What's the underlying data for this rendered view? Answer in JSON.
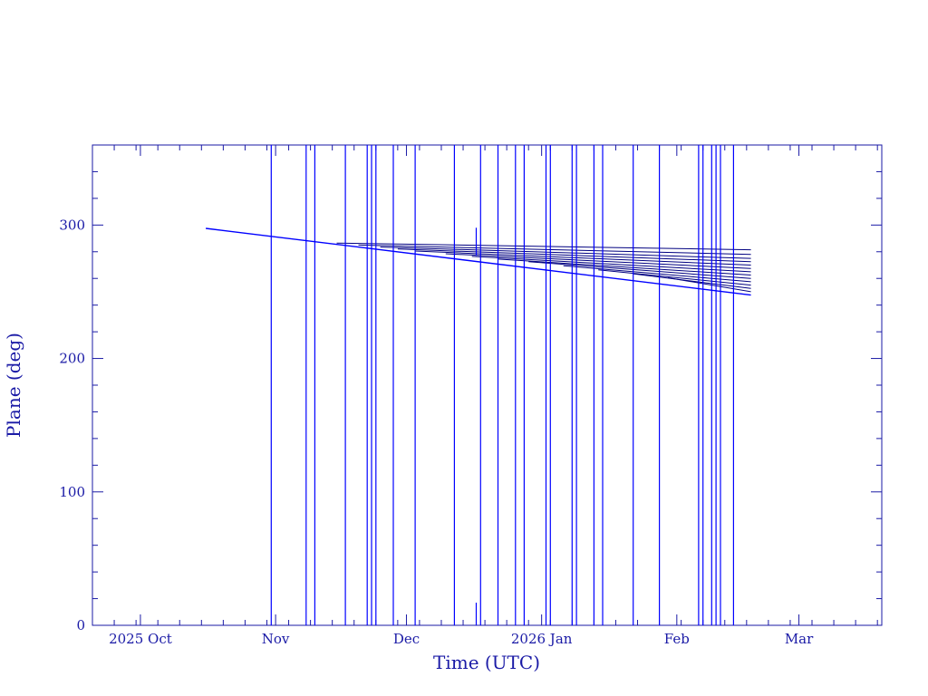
{
  "chart_data": {
    "type": "line",
    "xlabel": "Time (UTC)",
    "ylabel": "Plane (deg)",
    "title": "",
    "x_scale": "date",
    "xlim": [
      "2025-09-20",
      "2026-03-20"
    ],
    "ylim": [
      0,
      360
    ],
    "x_ticks": [
      {
        "date": "2025-10-01",
        "label": "2025 Oct"
      },
      {
        "date": "2025-11-01",
        "label": "Nov"
      },
      {
        "date": "2025-12-01",
        "label": "Dec"
      },
      {
        "date": "2026-01-01",
        "label": "2026 Jan"
      },
      {
        "date": "2026-02-01",
        "label": "Feb"
      },
      {
        "date": "2026-03-01",
        "label": "Mar"
      }
    ],
    "y_ticks": [
      0,
      100,
      200,
      300
    ],
    "colors": {
      "axis": "#1a1aa6",
      "main": "#0000ff",
      "secondary": "#000080"
    },
    "series": [
      {
        "x": [
          "2025-10-16",
          "2026-02-18"
        ],
        "y": [
          297.5,
          247.5
        ]
      },
      {
        "x": [
          "2025-10-31",
          "2025-10-31"
        ],
        "y": [
          0,
          360
        ]
      },
      {
        "x": [
          "2025-11-08",
          "2025-11-08"
        ],
        "y": [
          0,
          360
        ]
      },
      {
        "x": [
          "2025-11-10",
          "2025-11-10"
        ],
        "y": [
          0,
          360
        ]
      },
      {
        "x": [
          "2025-11-17",
          "2025-11-17"
        ],
        "y": [
          0,
          360
        ]
      },
      {
        "x": [
          "2025-11-22",
          "2025-11-22"
        ],
        "y": [
          0,
          360
        ]
      },
      {
        "x": [
          "2025-11-23",
          "2025-11-23"
        ],
        "y": [
          0,
          360
        ]
      },
      {
        "x": [
          "2025-11-24",
          "2025-11-24"
        ],
        "y": [
          0,
          360
        ]
      },
      {
        "x": [
          "2025-11-28",
          "2025-11-28"
        ],
        "y": [
          0,
          360
        ]
      },
      {
        "x": [
          "2025-12-03",
          "2025-12-03"
        ],
        "y": [
          0,
          360
        ]
      },
      {
        "x": [
          "2025-12-12",
          "2025-12-12"
        ],
        "y": [
          0,
          360
        ]
      },
      {
        "x": [
          "2025-12-18",
          "2025-12-18"
        ],
        "y": [
          0,
          360
        ]
      },
      {
        "x": [
          "2025-12-22",
          "2025-12-22"
        ],
        "y": [
          0,
          360
        ]
      },
      {
        "x": [
          "2025-12-26",
          "2025-12-26"
        ],
        "y": [
          0,
          360
        ]
      },
      {
        "x": [
          "2025-12-28",
          "2025-12-28"
        ],
        "y": [
          0,
          360
        ]
      },
      {
        "x": [
          "2026-01-02",
          "2026-01-02"
        ],
        "y": [
          0,
          360
        ]
      },
      {
        "x": [
          "2026-01-03",
          "2026-01-03"
        ],
        "y": [
          0,
          360
        ]
      },
      {
        "x": [
          "2026-01-08",
          "2026-01-08"
        ],
        "y": [
          0,
          360
        ]
      },
      {
        "x": [
          "2026-01-09",
          "2026-01-09"
        ],
        "y": [
          0,
          360
        ]
      },
      {
        "x": [
          "2026-01-13",
          "2026-01-13"
        ],
        "y": [
          0,
          360
        ]
      },
      {
        "x": [
          "2026-01-15",
          "2026-01-15"
        ],
        "y": [
          0,
          360
        ]
      },
      {
        "x": [
          "2026-01-22",
          "2026-01-22"
        ],
        "y": [
          0,
          360
        ]
      },
      {
        "x": [
          "2026-01-28",
          "2026-01-28"
        ],
        "y": [
          0,
          360
        ]
      },
      {
        "x": [
          "2026-02-06",
          "2026-02-06"
        ],
        "y": [
          0,
          360
        ]
      },
      {
        "x": [
          "2026-02-07",
          "2026-02-07"
        ],
        "y": [
          0,
          360
        ]
      },
      {
        "x": [
          "2026-02-09",
          "2026-02-09"
        ],
        "y": [
          0,
          360
        ]
      },
      {
        "x": [
          "2026-02-10",
          "2026-02-10"
        ],
        "y": [
          0,
          360
        ]
      },
      {
        "x": [
          "2026-02-11",
          "2026-02-11"
        ],
        "y": [
          0,
          360
        ]
      },
      {
        "x": [
          "2026-02-14",
          "2026-02-14"
        ],
        "y": [
          0,
          360
        ]
      },
      {
        "x": [
          "2025-12-17",
          "2025-12-17"
        ],
        "y": [
          277,
          298
        ]
      },
      {
        "x": [
          "2025-12-17",
          "2025-12-17"
        ],
        "y": [
          0,
          17
        ]
      }
    ],
    "secondary_series": [
      {
        "x": [
          "2025-11-15",
          "2026-02-18"
        ],
        "y": [
          286.5,
          281.5
        ]
      },
      {
        "x": [
          "2025-11-20",
          "2026-02-18"
        ],
        "y": [
          285.0,
          278.0
        ]
      },
      {
        "x": [
          "2025-11-25",
          "2026-02-18"
        ],
        "y": [
          283.5,
          275.0
        ]
      },
      {
        "x": [
          "2025-11-29",
          "2026-02-18"
        ],
        "y": [
          282.0,
          272.5
        ]
      },
      {
        "x": [
          "2025-12-03",
          "2026-02-18"
        ],
        "y": [
          280.5,
          270.0
        ]
      },
      {
        "x": [
          "2025-12-10",
          "2026-02-18"
        ],
        "y": [
          278.5,
          267.5
        ]
      },
      {
        "x": [
          "2025-12-16",
          "2026-02-18"
        ],
        "y": [
          276.5,
          265.0
        ]
      },
      {
        "x": [
          "2025-12-22",
          "2026-02-18"
        ],
        "y": [
          274.5,
          262.5
        ]
      },
      {
        "x": [
          "2025-12-29",
          "2026-02-18"
        ],
        "y": [
          272.5,
          260.0
        ]
      },
      {
        "x": [
          "2026-01-06",
          "2026-02-18"
        ],
        "y": [
          269.5,
          257.5
        ]
      },
      {
        "x": [
          "2026-01-14",
          "2026-02-18"
        ],
        "y": [
          266.5,
          255.0
        ]
      },
      {
        "x": [
          "2026-01-22",
          "2026-02-18"
        ],
        "y": [
          263.5,
          252.5
        ]
      },
      {
        "x": [
          "2026-01-30",
          "2026-02-18"
        ],
        "y": [
          260.5,
          250.0
        ]
      }
    ]
  }
}
